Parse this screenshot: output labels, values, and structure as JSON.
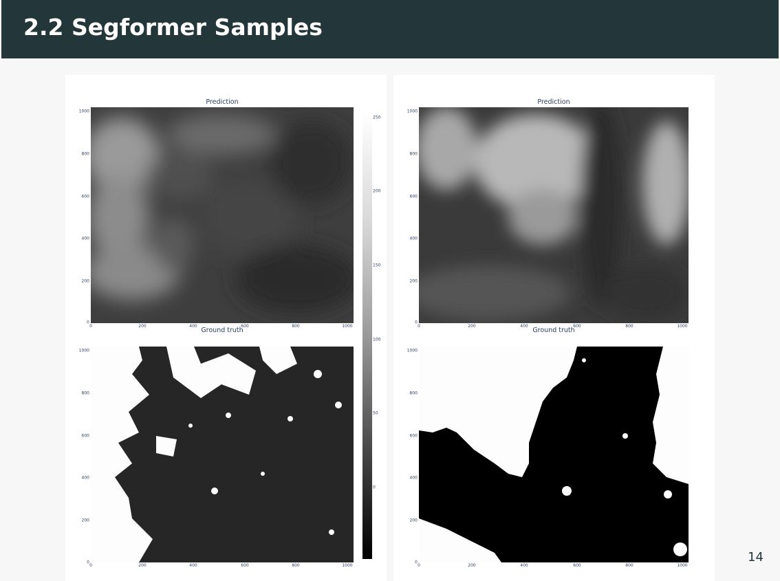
{
  "slide": {
    "title": "2.2 Segformer Samples",
    "page_number": "14"
  },
  "samples": [
    {
      "prediction": {
        "title": "Prediction",
        "x_ticks": [
          "0",
          "200",
          "400",
          "600",
          "800",
          "1000"
        ],
        "y_ticks": [
          "1000",
          "800",
          "600",
          "400",
          "200",
          "0"
        ]
      },
      "ground_truth": {
        "title": "Ground truth",
        "x_ticks": [
          "0",
          "200",
          "400",
          "600",
          "800",
          "1000"
        ],
        "y_ticks": [
          "1000",
          "800",
          "600",
          "400",
          "200",
          "0"
        ]
      }
    },
    {
      "prediction": {
        "title": "Prediction",
        "x_ticks": [
          "0",
          "200",
          "400",
          "600",
          "800",
          "1000"
        ],
        "y_ticks": [
          "1000",
          "800",
          "600",
          "400",
          "200",
          "0"
        ]
      },
      "ground_truth": {
        "title": "Ground truth",
        "x_ticks": [
          "0",
          "200",
          "400",
          "600",
          "800",
          "1000"
        ],
        "y_ticks": [
          "1000",
          "800",
          "600",
          "400",
          "200",
          "0"
        ]
      }
    }
  ],
  "colorbar": {
    "ticks": [
      "250",
      "200",
      "150",
      "100",
      "50",
      "0"
    ],
    "colorscale": "greys"
  },
  "colors": {
    "header_bg": "#23373b",
    "header_text": "#ffffff",
    "tick_text": "#2a3f5f",
    "slide_bg": "#f7f7f7"
  }
}
